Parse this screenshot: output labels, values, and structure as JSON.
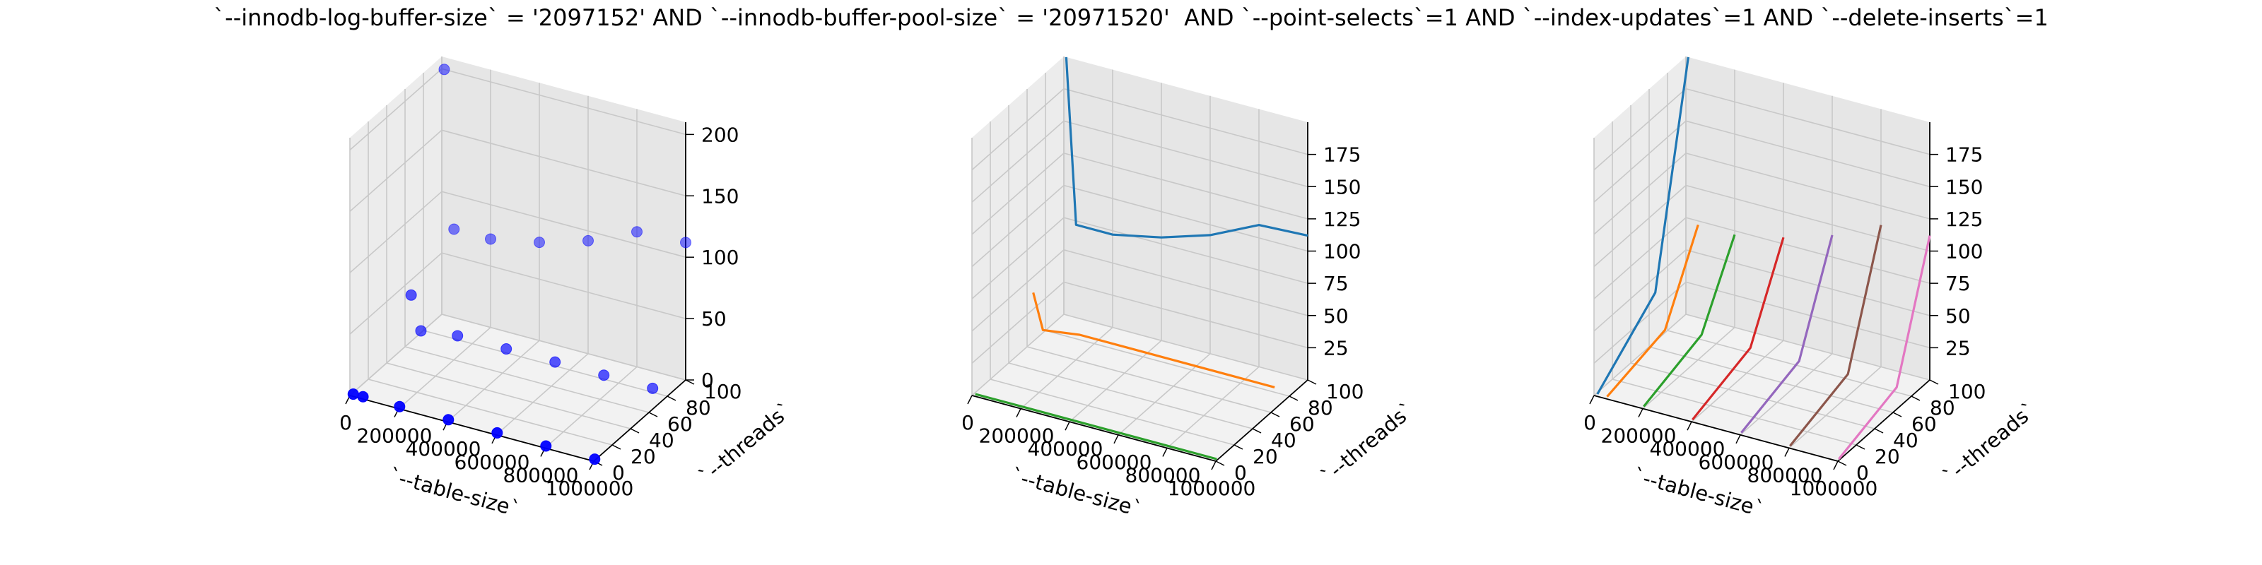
{
  "figure": {
    "title": "`--innodb-log-buffer-size` = '2097152' AND `--innodb-buffer-pool-size` = '20971520'  AND `--point-selects`=1 AND `--index-updates`=1 AND `--delete-inserts`=1"
  },
  "chart_data": [
    {
      "type": "scatter",
      "xlabel": "`--table-size`",
      "ylabel": "`--threads`",
      "xticks": [
        "0",
        "200000",
        "400000",
        "600000",
        "800000",
        "1000000"
      ],
      "yticks": [
        "0",
        "20",
        "40",
        "60",
        "80",
        "100"
      ],
      "zticks": [
        "0",
        "50",
        "100",
        "150",
        "200"
      ],
      "xlim": [
        0,
        1000000
      ],
      "ylim": [
        0,
        100
      ],
      "zlim": [
        0,
        210
      ],
      "grid": true,
      "color": "#0000ff",
      "points": [
        {
          "x": 10000,
          "y": 1,
          "z": 1
        },
        {
          "x": 50000,
          "y": 1,
          "z": 1
        },
        {
          "x": 200000,
          "y": 1,
          "z": 1
        },
        {
          "x": 400000,
          "y": 1,
          "z": 1
        },
        {
          "x": 600000,
          "y": 1,
          "z": 1
        },
        {
          "x": 800000,
          "y": 1,
          "z": 1
        },
        {
          "x": 1000000,
          "y": 1,
          "z": 1
        },
        {
          "x": 10000,
          "y": 64,
          "z": 40
        },
        {
          "x": 50000,
          "y": 64,
          "z": 13
        },
        {
          "x": 200000,
          "y": 64,
          "z": 17
        },
        {
          "x": 400000,
          "y": 64,
          "z": 17
        },
        {
          "x": 600000,
          "y": 64,
          "z": 17
        },
        {
          "x": 800000,
          "y": 64,
          "z": 17
        },
        {
          "x": 1000000,
          "y": 64,
          "z": 17
        },
        {
          "x": 10000,
          "y": 100,
          "z": 200
        },
        {
          "x": 50000,
          "y": 100,
          "z": 72
        },
        {
          "x": 200000,
          "y": 100,
          "z": 72
        },
        {
          "x": 400000,
          "y": 100,
          "z": 80
        },
        {
          "x": 600000,
          "y": 100,
          "z": 92
        },
        {
          "x": 800000,
          "y": 100,
          "z": 110
        },
        {
          "x": 1000000,
          "y": 100,
          "z": 112
        }
      ]
    },
    {
      "type": "line",
      "xlabel": "`--table-size`",
      "ylabel": "`--threads`",
      "xticks": [
        "0",
        "200000",
        "400000",
        "600000",
        "800000",
        "1000000"
      ],
      "yticks": [
        "0",
        "20",
        "40",
        "60",
        "80",
        "100"
      ],
      "zticks": [
        "25",
        "50",
        "75",
        "100",
        "125",
        "150",
        "175"
      ],
      "xlim": [
        0,
        1000000
      ],
      "ylim": [
        0,
        100
      ],
      "zlim": [
        0,
        200
      ],
      "grid": true,
      "x": [
        10000,
        50000,
        200000,
        400000,
        600000,
        800000,
        1000000
      ],
      "series": [
        {
          "y": 1,
          "color": "#2ca02c",
          "z": [
            1,
            1,
            1,
            1,
            1,
            1,
            1
          ]
        },
        {
          "y": 64,
          "color": "#ff7f0e",
          "z": [
            40,
            13,
            17,
            17,
            17,
            17,
            17
          ]
        },
        {
          "y": 100,
          "color": "#1f77b4",
          "z": [
            200,
            72,
            72,
            80,
            92,
            110,
            112
          ]
        }
      ]
    },
    {
      "type": "line",
      "xlabel": "`--table-size`",
      "ylabel": "`--threads`",
      "xticks": [
        "0",
        "200000",
        "400000",
        "600000",
        "800000",
        "1000000"
      ],
      "yticks": [
        "0",
        "20",
        "40",
        "60",
        "80",
        "100"
      ],
      "zticks": [
        "25",
        "50",
        "75",
        "100",
        "125",
        "150",
        "175"
      ],
      "xlim": [
        0,
        1000000
      ],
      "ylim": [
        0,
        100
      ],
      "zlim": [
        0,
        200
      ],
      "grid": true,
      "y": [
        1,
        64,
        100
      ],
      "series": [
        {
          "x": 10000,
          "color": "#1f77b4",
          "z": [
            1,
            40,
            200
          ]
        },
        {
          "x": 50000,
          "color": "#ff7f0e",
          "z": [
            1,
            13,
            72
          ]
        },
        {
          "x": 200000,
          "color": "#2ca02c",
          "z": [
            1,
            17,
            72
          ]
        },
        {
          "x": 400000,
          "color": "#d62728",
          "z": [
            1,
            17,
            80
          ]
        },
        {
          "x": 600000,
          "color": "#9467bd",
          "z": [
            1,
            17,
            92
          ]
        },
        {
          "x": 800000,
          "color": "#8c564b",
          "z": [
            1,
            17,
            110
          ]
        },
        {
          "x": 1000000,
          "color": "#e377c2",
          "z": [
            1,
            17,
            112
          ]
        }
      ]
    }
  ]
}
